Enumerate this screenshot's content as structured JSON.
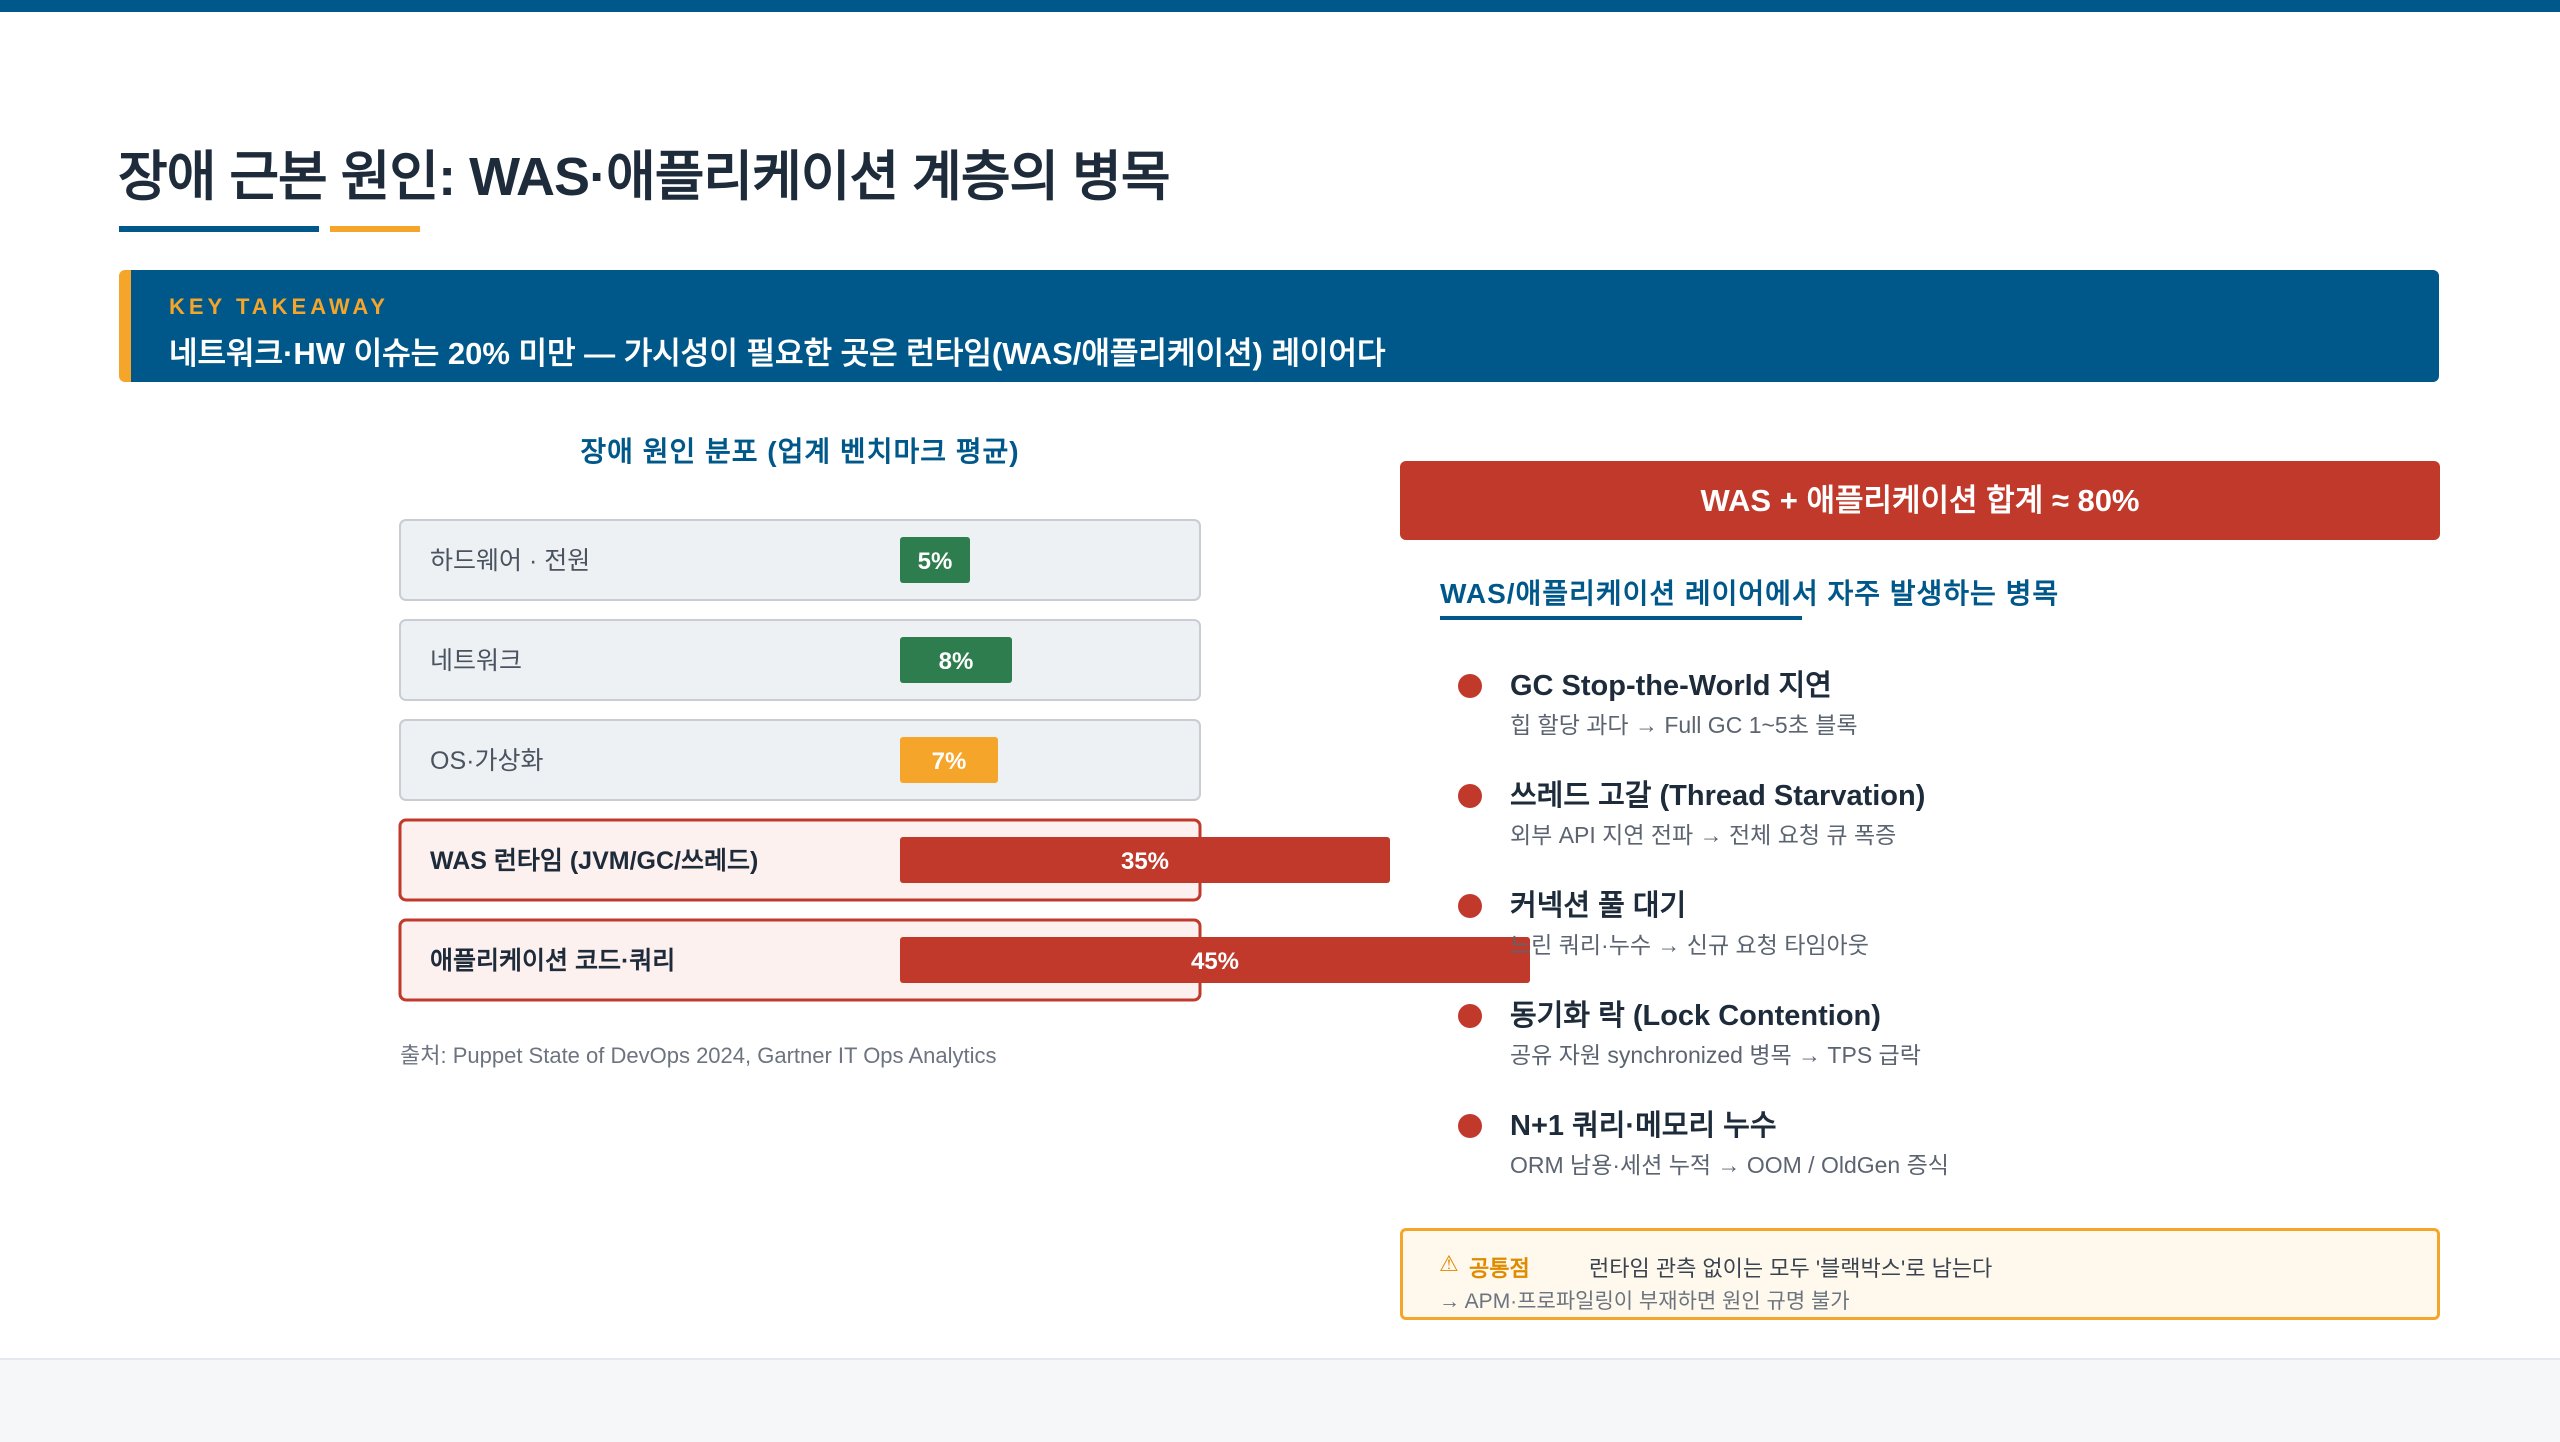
{
  "page": {
    "title": "장애 근본 원인: WAS·애플리케이션 계층의 병목"
  },
  "takeaway": {
    "kicker": "KEY TAKEAWAY",
    "text": "네트워크·HW 이슈는 20% 미만 — 가시성이 필요한 곳은 런타임(WAS/애플리케이션) 레이어다"
  },
  "chart_data": {
    "type": "bar",
    "orientation": "horizontal",
    "title": "장애 원인 분포 (업계 벤치마크 평균)",
    "xlabel": "",
    "ylabel": "",
    "categories": [
      "하드웨어 · 전원",
      "네트워크",
      "OS·가상화",
      "WAS 런타임 (JVM/GC/쓰레드)",
      "애플리케이션 코드·쿼리"
    ],
    "values": [
      5,
      8,
      7,
      35,
      45
    ],
    "value_labels": [
      "5%",
      "8%",
      "7%",
      "35%",
      "45%"
    ],
    "bar_colors": [
      "#2e7d4f",
      "#2e7d4f",
      "#f4a52a",
      "#c0392b",
      "#c0392b"
    ],
    "highlighted": [
      false,
      false,
      false,
      true,
      true
    ],
    "unit": "%",
    "grid": false,
    "legend": "none"
  },
  "source_note": "출처: Puppet State of DevOps 2024, Gartner IT Ops Analytics",
  "total_banner": "WAS + 애플리케이션 합계 ≈ 80%",
  "bottlenecks": {
    "heading": "WAS/애플리케이션 레이어에서 자주 발생하는 병목",
    "items": [
      {
        "title": "GC Stop-the-World 지연",
        "desc": "힙 할당 과다 → Full GC 1~5초 블록"
      },
      {
        "title": "쓰레드 고갈 (Thread Starvation)",
        "desc": "외부 API 지연 전파 → 전체 요청 큐 폭증"
      },
      {
        "title": "커넥션 풀 대기",
        "desc": "느린 쿼리·누수 → 신규 요청 타임아웃"
      },
      {
        "title": "동기화 락 (Lock Contention)",
        "desc": "공유 자원 synchronized 병목 → TPS 급락"
      },
      {
        "title": "N+1 쿼리·메모리 누수",
        "desc": "ORM 남용·세션 누적 → OOM / OldGen 증식"
      }
    ]
  },
  "note": {
    "icon": "warning-icon",
    "label": "공통점",
    "main": "런타임 관측 없이는 모두 '블랙박스'로 남는다",
    "sub": "→ APM·프로파일링이 부재하면 원인 규명 불가"
  },
  "colors": {
    "brand_blue": "#00578a",
    "accent_orange": "#f4a52a",
    "alert_red": "#c0392b",
    "ok_green": "#2e7d4f"
  }
}
